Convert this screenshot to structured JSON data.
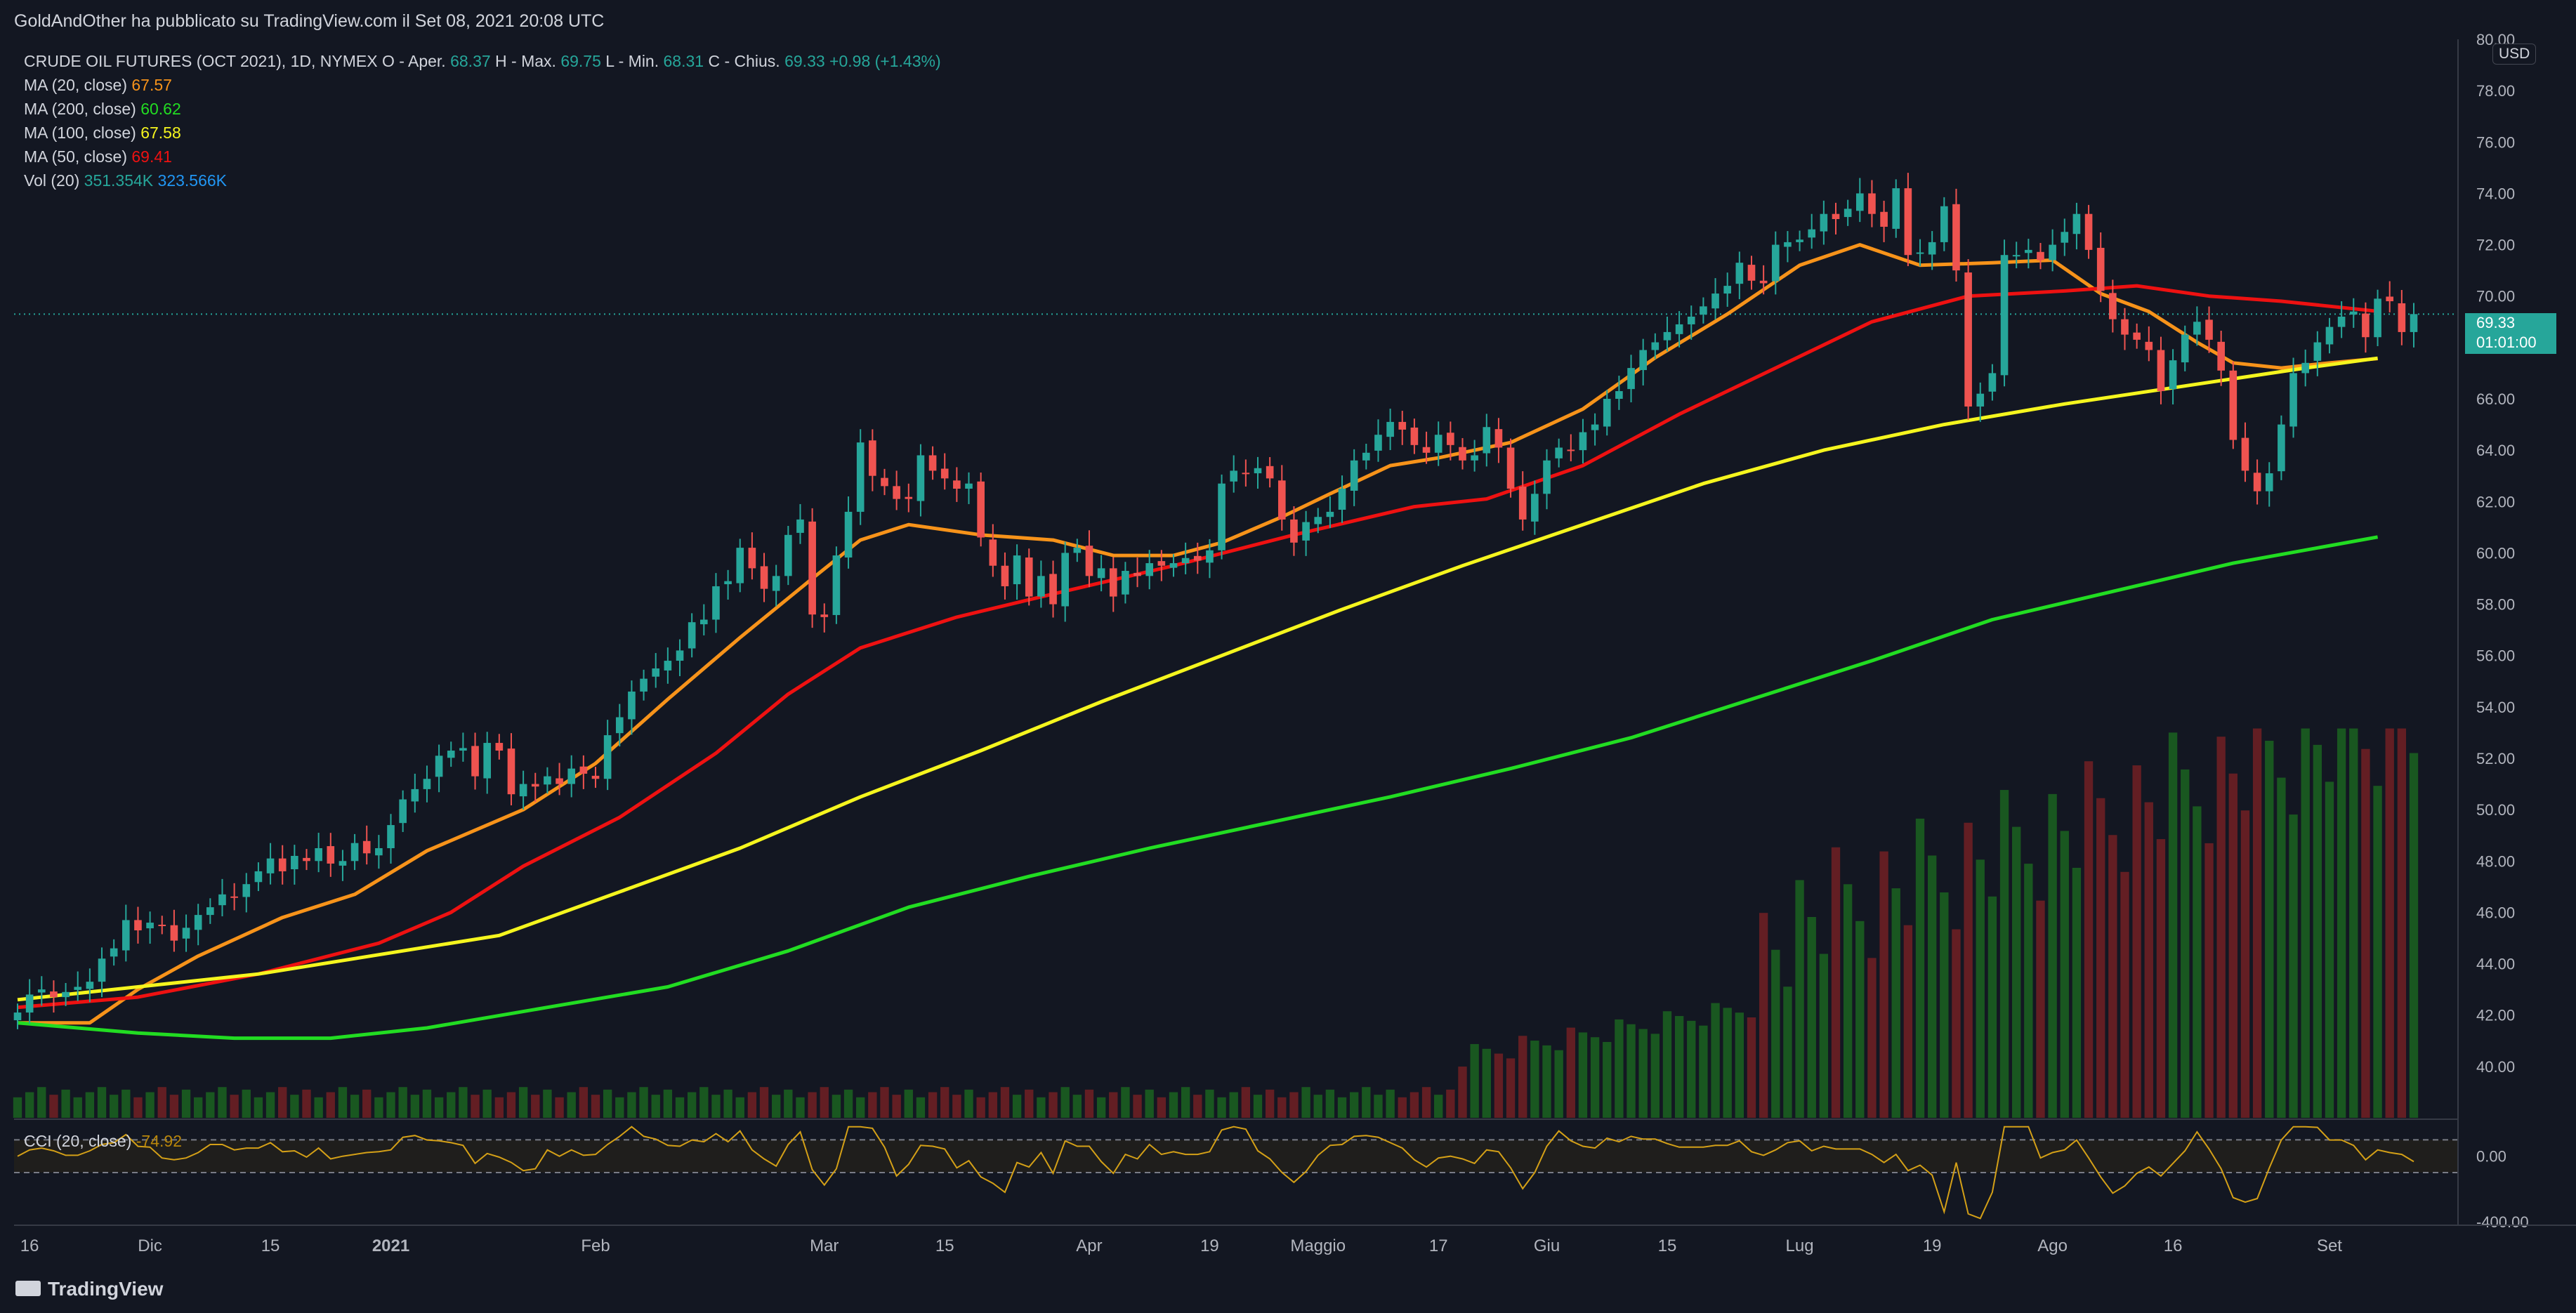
{
  "header": {
    "published_text": "GoldAndOther ha pubblicato su TradingView.com il Set 08, 2021 20:08 UTC"
  },
  "legend": {
    "symbol_line": "CRUDE OIL FUTURES (OCT 2021), 1D, NYMEX",
    "ohlc": {
      "open_label": "O - Aper.",
      "open": "68.37",
      "high_label": "H - Max.",
      "high": "69.75",
      "low_label": "L - Min.",
      "low": "68.31",
      "close_label": "C - Chius.",
      "close": "69.33",
      "change": "+0.98 (+1.43%)"
    },
    "ma20": {
      "label": "MA (20, close)",
      "value": "67.57",
      "color": "#f7931a"
    },
    "ma200": {
      "label": "MA (200, close)",
      "value": "60.62",
      "color": "#22dd22"
    },
    "ma100": {
      "label": "MA (100, close)",
      "value": "67.58",
      "color": "#f5f51e"
    },
    "ma50": {
      "label": "MA (50, close)",
      "value": "69.41",
      "color": "#ee1111"
    },
    "vol": {
      "label": "Vol (20)",
      "value1": "351.354K",
      "value2": "323.566K"
    }
  },
  "cci_legend": {
    "label": "CCI (20, close)",
    "value": "-74.92"
  },
  "price_badge": {
    "price": "69.33",
    "countdown": "01:01:00"
  },
  "currency": "USD",
  "footer": {
    "brand": "TradingView"
  },
  "colors": {
    "up": "#26a69a",
    "down": "#ef5350",
    "vol_up": "#1b5e20",
    "vol_down": "#6d1f24"
  },
  "chart_data": {
    "type": "candlestick",
    "title": "CRUDE OIL FUTURES (OCT 2021), 1D, NYMEX",
    "ylim": [
      38,
      80
    ],
    "y_ticks": [
      "80.00",
      "78.00",
      "76.00",
      "74.00",
      "72.00",
      "70.00",
      "68.00",
      "66.00",
      "64.00",
      "62.00",
      "60.00",
      "58.00",
      "56.00",
      "54.00",
      "52.00",
      "50.00",
      "48.00",
      "46.00",
      "44.00",
      "42.00",
      "40.00"
    ],
    "x_ticks": [
      {
        "label": "16",
        "bar": 1
      },
      {
        "label": "Dic",
        "bar": 11
      },
      {
        "label": "15",
        "bar": 21
      },
      {
        "label": "2021",
        "bar": 31
      },
      {
        "label": "Feb",
        "bar": 48
      },
      {
        "label": "Mar",
        "bar": 67
      },
      {
        "label": "15",
        "bar": 77
      },
      {
        "label": "Apr",
        "bar": 89
      },
      {
        "label": "19",
        "bar": 99
      },
      {
        "label": "Maggio",
        "bar": 108
      },
      {
        "label": "17",
        "bar": 118
      },
      {
        "label": "Giu",
        "bar": 127
      },
      {
        "label": "15",
        "bar": 137
      },
      {
        "label": "Lug",
        "bar": 148
      },
      {
        "label": "19",
        "bar": 159
      },
      {
        "label": "Ago",
        "bar": 169
      },
      {
        "label": "16",
        "bar": 179
      },
      {
        "label": "Set",
        "bar": 192
      }
    ],
    "closes": [
      42.1,
      42.8,
      43.0,
      42.7,
      42.9,
      43.1,
      43.3,
      44.2,
      44.6,
      45.7,
      45.3,
      45.6,
      45.5,
      44.9,
      45.4,
      45.9,
      46.2,
      46.7,
      46.6,
      47.1,
      47.6,
      48.1,
      47.6,
      48.2,
      48.0,
      48.5,
      47.9,
      48.0,
      48.7,
      48.3,
      48.5,
      49.4,
      50.4,
      50.8,
      51.2,
      52.1,
      52.3,
      52.4,
      51.3,
      52.6,
      52.3,
      50.6,
      51.0,
      50.9,
      51.3,
      51.0,
      51.6,
      51.4,
      51.2,
      52.9,
      53.6,
      54.6,
      55.1,
      55.5,
      55.8,
      56.2,
      57.3,
      57.4,
      58.7,
      58.9,
      60.2,
      59.4,
      58.6,
      59.1,
      60.7,
      61.3,
      57.6,
      57.5,
      59.9,
      61.6,
      64.3,
      63.0,
      62.6,
      62.1,
      62.1,
      63.8,
      63.2,
      62.9,
      62.5,
      62.7,
      60.6,
      59.5,
      58.7,
      59.9,
      58.3,
      59.1,
      58.0,
      60.0,
      60.2,
      59.1,
      59.4,
      58.3,
      59.3,
      59.1,
      59.6,
      59.5,
      59.6,
      59.8,
      59.7,
      60.1,
      62.7,
      63.2,
      63.1,
      63.3,
      62.9,
      61.3,
      60.4,
      61.2,
      61.4,
      61.6,
      62.5,
      63.6,
      63.9,
      64.6,
      65.1,
      64.8,
      64.2,
      63.9,
      64.6,
      64.2,
      63.6,
      63.8,
      64.9,
      64.1,
      62.5,
      61.3,
      62.3,
      63.6,
      64.1,
      64.0,
      64.7,
      65.0,
      66.0,
      66.3,
      67.2,
      67.9,
      68.2,
      68.6,
      68.9,
      69.2,
      69.6,
      70.1,
      70.4,
      71.3,
      70.6,
      70.5,
      72.0,
      72.1,
      72.2,
      72.6,
      73.2,
      73.0,
      73.4,
      74.0,
      73.2,
      72.7,
      74.2,
      71.6,
      71.7,
      72.1,
      73.5,
      71.0,
      65.7,
      66.2,
      67.0,
      71.6,
      71.6,
      71.8,
      71.4,
      72.0,
      72.5,
      73.2,
      71.8,
      70.2,
      69.1,
      68.5,
      68.3,
      67.9,
      66.3,
      67.5,
      68.5,
      69.0,
      68.3,
      67.1,
      64.4,
      63.2,
      62.4,
      63.1,
      65.0,
      67.0,
      67.4,
      68.2,
      68.8,
      69.2,
      69.4,
      68.4,
      69.9,
      69.8,
      68.6,
      69.3
    ],
    "volume_max_k": 600,
    "series": [
      {
        "name": "MA (20, close)",
        "color": "#f7931a",
        "points": [
          [
            0,
            41.7
          ],
          [
            6,
            41.7
          ],
          [
            10,
            43.0
          ],
          [
            15,
            44.3
          ],
          [
            22,
            45.8
          ],
          [
            28,
            46.7
          ],
          [
            34,
            48.4
          ],
          [
            42,
            50.0
          ],
          [
            48,
            51.8
          ],
          [
            54,
            54.3
          ],
          [
            60,
            56.7
          ],
          [
            66,
            59.0
          ],
          [
            70,
            60.5
          ],
          [
            74,
            61.1
          ],
          [
            80,
            60.7
          ],
          [
            86,
            60.5
          ],
          [
            91,
            59.9
          ],
          [
            96,
            59.9
          ],
          [
            100,
            60.4
          ],
          [
            105,
            61.4
          ],
          [
            109,
            62.3
          ],
          [
            114,
            63.4
          ],
          [
            118,
            63.7
          ],
          [
            124,
            64.3
          ],
          [
            130,
            65.6
          ],
          [
            136,
            67.6
          ],
          [
            142,
            69.3
          ],
          [
            148,
            71.2
          ],
          [
            153,
            72.0
          ],
          [
            158,
            71.2
          ],
          [
            164,
            71.3
          ],
          [
            169,
            71.4
          ],
          [
            173,
            70.1
          ],
          [
            177,
            69.4
          ],
          [
            181,
            68.2
          ],
          [
            184,
            67.4
          ],
          [
            188,
            67.2
          ],
          [
            192,
            67.4
          ],
          [
            196,
            67.57
          ]
        ]
      },
      {
        "name": "MA (50, close)",
        "color": "#ee1111",
        "points": [
          [
            0,
            42.3
          ],
          [
            10,
            42.7
          ],
          [
            20,
            43.6
          ],
          [
            30,
            44.8
          ],
          [
            36,
            46.0
          ],
          [
            42,
            47.8
          ],
          [
            50,
            49.7
          ],
          [
            58,
            52.2
          ],
          [
            64,
            54.5
          ],
          [
            70,
            56.3
          ],
          [
            78,
            57.5
          ],
          [
            86,
            58.4
          ],
          [
            96,
            59.5
          ],
          [
            106,
            60.7
          ],
          [
            116,
            61.8
          ],
          [
            122,
            62.1
          ],
          [
            130,
            63.4
          ],
          [
            138,
            65.4
          ],
          [
            146,
            67.2
          ],
          [
            154,
            69.0
          ],
          [
            162,
            70.0
          ],
          [
            170,
            70.2
          ],
          [
            176,
            70.4
          ],
          [
            182,
            70.0
          ],
          [
            188,
            69.8
          ],
          [
            196,
            69.41
          ]
        ]
      },
      {
        "name": "MA (100, close)",
        "color": "#f5f51e",
        "points": [
          [
            0,
            42.6
          ],
          [
            20,
            43.6
          ],
          [
            40,
            45.1
          ],
          [
            50,
            46.8
          ],
          [
            60,
            48.5
          ],
          [
            70,
            50.5
          ],
          [
            80,
            52.3
          ],
          [
            90,
            54.2
          ],
          [
            100,
            56.0
          ],
          [
            110,
            57.8
          ],
          [
            120,
            59.5
          ],
          [
            130,
            61.1
          ],
          [
            140,
            62.7
          ],
          [
            150,
            64.0
          ],
          [
            160,
            65.0
          ],
          [
            170,
            65.8
          ],
          [
            180,
            66.5
          ],
          [
            190,
            67.2
          ],
          [
            196,
            67.58
          ]
        ]
      },
      {
        "name": "MA (200, close)",
        "color": "#22dd22",
        "points": [
          [
            0,
            41.7
          ],
          [
            10,
            41.3
          ],
          [
            18,
            41.1
          ],
          [
            26,
            41.1
          ],
          [
            34,
            41.5
          ],
          [
            44,
            42.3
          ],
          [
            54,
            43.1
          ],
          [
            64,
            44.5
          ],
          [
            74,
            46.2
          ],
          [
            84,
            47.4
          ],
          [
            94,
            48.5
          ],
          [
            104,
            49.5
          ],
          [
            114,
            50.5
          ],
          [
            124,
            51.6
          ],
          [
            134,
            52.8
          ],
          [
            144,
            54.3
          ],
          [
            154,
            55.8
          ],
          [
            164,
            57.4
          ],
          [
            174,
            58.5
          ],
          [
            184,
            59.6
          ],
          [
            196,
            60.62
          ]
        ]
      }
    ],
    "cci_ylim": [
      -400,
      200
    ],
    "cci_ticks": [
      "0.00",
      "-400.00"
    ]
  }
}
